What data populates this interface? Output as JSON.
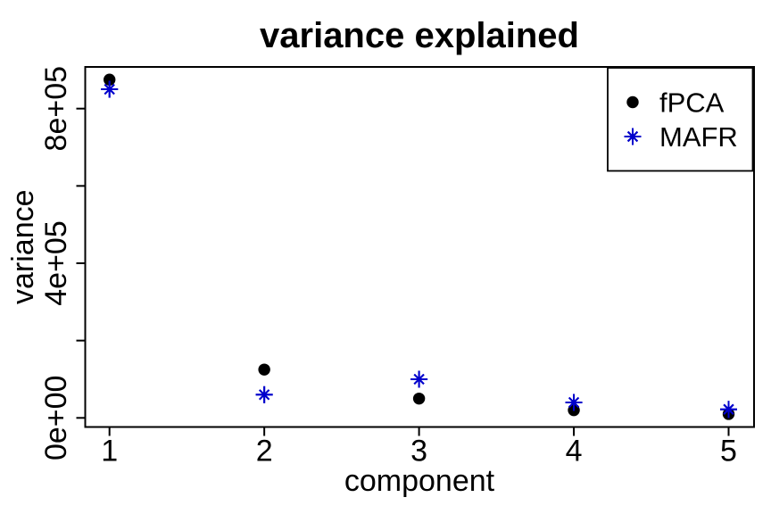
{
  "chart_data": {
    "type": "scatter",
    "title": "variance explained",
    "xlabel": "component",
    "ylabel": "variance",
    "x": [
      1,
      2,
      3,
      4,
      5
    ],
    "x_tick_labels": [
      "1",
      "2",
      "3",
      "4",
      "5"
    ],
    "y_ticks": [
      {
        "value": 0,
        "label": "0e+00"
      },
      {
        "value": 200000,
        "label": ""
      },
      {
        "value": 400000,
        "label": "4e+05"
      },
      {
        "value": 600000,
        "label": ""
      },
      {
        "value": 800000,
        "label": "8e+05"
      }
    ],
    "xlim": [
      1,
      5
    ],
    "ylim": [
      0,
      910000
    ],
    "grid": false,
    "legend_position": "top-right",
    "series": [
      {
        "name": "fPCA",
        "marker": "filled-circle",
        "color": "#000000",
        "values": [
          875000,
          125000,
          50000,
          20000,
          10000
        ]
      },
      {
        "name": "MAFR",
        "marker": "eight-ray-star",
        "color": "#0000CC",
        "values": [
          850000,
          60000,
          100000,
          40000,
          22000
        ]
      }
    ]
  },
  "colors": {
    "background": "#FFFFFF",
    "foreground": "#000000",
    "accent_blue": "#0000CC"
  }
}
